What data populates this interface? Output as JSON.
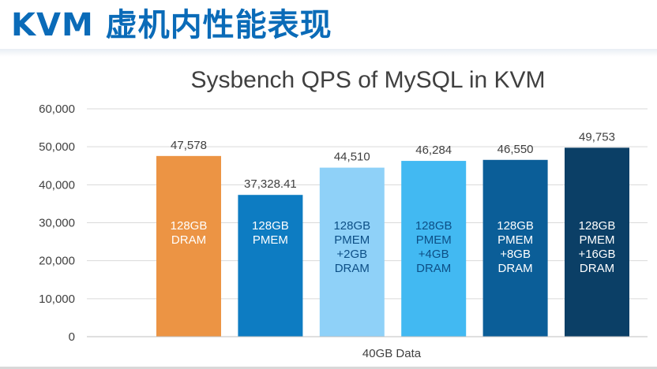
{
  "slide": {
    "title": "KVM 虚机内性能表现"
  },
  "colors": {
    "title": "#0a6bb8",
    "bars": [
      "#ec9444",
      "#0d7cc2",
      "#8fd1f8",
      "#42b9f2",
      "#0b5e98",
      "#0b3f66"
    ]
  },
  "chart_data": {
    "type": "bar",
    "title": "Sysbench QPS of MySQL in KVM",
    "xlabel": "40GB Data",
    "ylabel": "",
    "ylim": [
      0,
      60000
    ],
    "yticks": [
      "0",
      "10,000",
      "20,000",
      "30,000",
      "40,000",
      "50,000",
      "60,000"
    ],
    "grid": true,
    "categories": [
      [
        "128GB",
        "DRAM"
      ],
      [
        "128GB",
        "PMEM"
      ],
      [
        "128GB",
        "PMEM",
        "+2GB",
        "DRAM"
      ],
      [
        "128GB",
        "PMEM",
        "+4GB",
        "DRAM"
      ],
      [
        "128GB",
        "PMEM",
        "+8GB",
        "DRAM"
      ],
      [
        "128GB",
        "PMEM",
        "+16GB",
        "DRAM"
      ]
    ],
    "values": [
      47578,
      37328.41,
      44510,
      46284,
      46550,
      49753
    ],
    "value_labels": [
      "47,578",
      "37,328.41",
      "44,510",
      "46,284",
      "46,550",
      "49,753"
    ]
  }
}
